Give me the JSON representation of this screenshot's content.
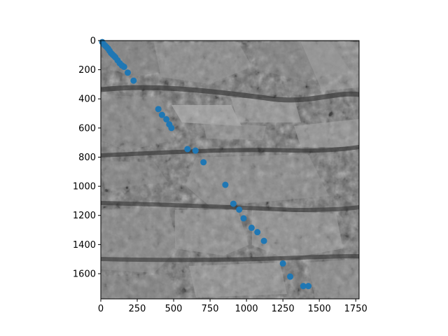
{
  "chart_data": {
    "type": "scatter",
    "title": "",
    "xlabel": "",
    "ylabel": "",
    "xlim": [
      0,
      1773
    ],
    "ylim": [
      1773,
      0
    ],
    "y_inverted": true,
    "x_ticks": [
      0,
      250,
      500,
      750,
      1000,
      1250,
      1500,
      1750
    ],
    "y_ticks": [
      0,
      200,
      400,
      600,
      800,
      1000,
      1200,
      1400,
      1600
    ],
    "background": "grayscale photograph of a dry-stone wall with moss",
    "marker_color": "#1f77b4",
    "series": [
      {
        "x": [
          10,
          20,
          30,
          40,
          50,
          60,
          70,
          80,
          90,
          100,
          115,
          130,
          145,
          160,
          185,
          225,
          395,
          420,
          450,
          470,
          485,
          595,
          650,
          705,
          855,
          910,
          950,
          980,
          1035,
          1075,
          1120,
          1250,
          1300,
          1390,
          1425
        ],
        "y": [
          10,
          25,
          35,
          45,
          55,
          70,
          85,
          95,
          105,
          115,
          135,
          155,
          170,
          180,
          220,
          275,
          470,
          510,
          540,
          575,
          600,
          745,
          755,
          835,
          990,
          1120,
          1160,
          1220,
          1285,
          1315,
          1375,
          1530,
          1620,
          1685,
          1685
        ]
      }
    ]
  }
}
